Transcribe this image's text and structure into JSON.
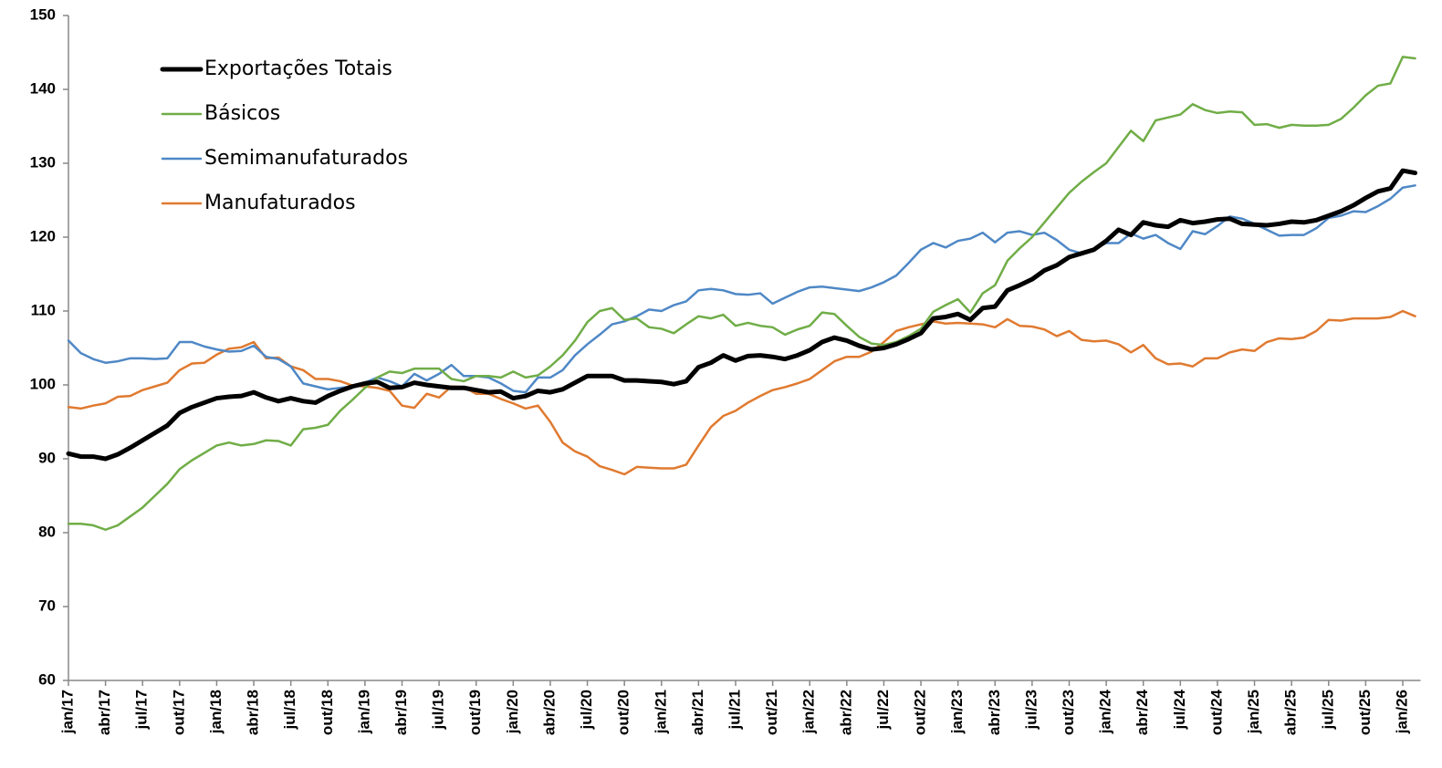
{
  "chart_data": {
    "type": "line",
    "categories": [
      "jan/17",
      null,
      null,
      "abr/17",
      null,
      null,
      "jul/17",
      null,
      null,
      "out/17",
      null,
      null,
      "jan/18",
      null,
      null,
      "abr/18",
      null,
      null,
      "jul/18",
      null,
      null,
      "out/18",
      null,
      null,
      "jan/19",
      null,
      null,
      "abr/19",
      null,
      null,
      "jul/19",
      null,
      null,
      "out/19",
      null,
      null,
      "jan/20",
      null,
      null,
      "abr/20",
      null,
      null,
      "jul/20",
      null,
      null,
      "out/20",
      null,
      null,
      "jan/21",
      null,
      null,
      "abr/21",
      null,
      null,
      "jul/21",
      null,
      null,
      "out/21",
      null,
      null,
      "jan/22",
      null,
      null,
      "abr/22",
      null,
      null,
      "jul/22",
      null,
      null,
      "out/22",
      null,
      null,
      "jan/23",
      null,
      null,
      "abr/23",
      null,
      null,
      "jul/23",
      null,
      null,
      "out/23",
      null,
      null,
      "jan/24",
      null,
      null,
      "abr/24",
      null,
      null,
      "jul/24",
      null,
      null,
      "out/24",
      null,
      null,
      "jan/25",
      null,
      null,
      "abr/25",
      null,
      null,
      "jul/25",
      null,
      null,
      "out/25",
      null,
      null,
      "jan/26",
      null
    ],
    "series": [
      {
        "name": "Exportações Totais",
        "color": "#000000",
        "width": 5,
        "values": [
          90.7,
          90.3,
          90.3,
          90.0,
          90.6,
          91.5,
          92.5,
          93.5,
          94.5,
          96.2,
          97.0,
          97.6,
          98.2,
          98.4,
          98.5,
          99.0,
          98.3,
          97.8,
          98.2,
          97.8,
          97.6,
          98.5,
          99.2,
          99.8,
          100.2,
          100.4,
          99.6,
          99.7,
          100.3,
          100.0,
          99.8,
          99.6,
          99.6,
          99.3,
          99.0,
          99.1,
          98.2,
          98.5,
          99.2,
          99.0,
          99.4,
          100.3,
          101.2,
          101.2,
          101.2,
          100.6,
          100.6,
          100.5,
          100.4,
          100.1,
          100.5,
          102.4,
          103.0,
          104.0,
          103.3,
          103.9,
          104.0,
          103.8,
          103.5,
          104.0,
          104.7,
          105.8,
          106.4,
          106.0,
          105.3,
          104.8,
          105.0,
          105.5,
          106.2,
          107.0,
          109.0,
          109.2,
          109.6,
          108.8,
          110.4,
          110.6,
          112.8,
          113.5,
          114.3,
          115.5,
          116.2,
          117.3,
          117.8,
          118.3,
          119.5,
          121.0,
          120.3,
          122.0,
          121.6,
          121.4,
          122.3,
          121.9,
          122.1,
          122.4,
          122.5,
          121.8,
          121.7,
          121.6,
          121.8,
          122.1,
          122.0,
          122.3,
          122.9,
          123.5,
          124.3,
          125.3,
          126.2,
          126.6,
          129.0,
          128.7
        ]
      },
      {
        "name": "Básicos",
        "color": "#70ad47",
        "width": 2.5,
        "values": [
          81.2,
          81.2,
          81.0,
          80.4,
          81.0,
          82.2,
          83.4,
          85.0,
          86.6,
          88.6,
          89.8,
          90.8,
          91.8,
          92.2,
          91.8,
          92.0,
          92.5,
          92.4,
          91.8,
          94.0,
          94.2,
          94.6,
          96.5,
          98.0,
          99.6,
          101.0,
          101.8,
          101.6,
          102.2,
          102.2,
          102.2,
          100.8,
          100.5,
          101.2,
          101.2,
          101.0,
          101.8,
          101.0,
          101.3,
          102.5,
          104.0,
          106.0,
          108.5,
          110.0,
          110.4,
          108.8,
          109.0,
          107.8,
          107.6,
          107.0,
          108.2,
          109.3,
          109.0,
          109.5,
          108.0,
          108.4,
          108.0,
          107.8,
          106.8,
          107.5,
          108.0,
          109.8,
          109.6,
          108.0,
          106.5,
          105.6,
          105.4,
          105.8,
          106.6,
          107.6,
          109.9,
          110.8,
          111.6,
          109.8,
          112.4,
          113.5,
          116.8,
          118.5,
          120.0,
          122.0,
          124.0,
          126.0,
          127.5,
          128.8,
          130.0,
          132.2,
          134.4,
          133.0,
          135.8,
          136.2,
          136.6,
          138.0,
          137.2,
          136.8,
          137.0,
          136.9,
          135.2,
          135.3,
          134.8,
          135.2,
          135.1,
          135.1,
          135.2,
          136.0,
          137.5,
          139.2,
          140.5,
          140.8,
          144.4,
          144.2
        ]
      },
      {
        "name": "Semimanufaturados",
        "color": "#4f88c6",
        "width": 2.5,
        "values": [
          106.0,
          104.3,
          103.5,
          103.0,
          103.2,
          103.6,
          103.6,
          103.5,
          103.6,
          105.8,
          105.8,
          105.2,
          104.8,
          104.5,
          104.6,
          105.3,
          103.8,
          103.5,
          102.5,
          100.2,
          99.8,
          99.4,
          99.6,
          99.8,
          100.3,
          101.0,
          100.5,
          99.8,
          101.5,
          100.6,
          101.5,
          102.7,
          101.2,
          101.2,
          101.0,
          100.2,
          99.2,
          99.0,
          101.0,
          101.0,
          102.0,
          104.0,
          105.5,
          106.8,
          108.2,
          108.6,
          109.3,
          110.2,
          110.0,
          110.8,
          111.3,
          112.8,
          113.0,
          112.8,
          112.3,
          112.2,
          112.4,
          111.0,
          111.8,
          112.6,
          113.2,
          113.3,
          113.1,
          112.9,
          112.7,
          113.2,
          113.9,
          114.8,
          116.5,
          118.3,
          119.2,
          118.6,
          119.5,
          119.8,
          120.6,
          119.3,
          120.6,
          120.8,
          120.3,
          120.6,
          119.6,
          118.3,
          117.8,
          118.4,
          119.2,
          119.2,
          120.5,
          119.8,
          120.3,
          119.2,
          118.4,
          120.8,
          120.4,
          121.5,
          122.8,
          122.5,
          121.8,
          121.0,
          120.2,
          120.3,
          120.3,
          121.2,
          122.6,
          122.9,
          123.5,
          123.4,
          124.2,
          125.2,
          126.7,
          127.0
        ]
      },
      {
        "name": "Manufaturados",
        "color": "#e07a30",
        "width": 2.5,
        "values": [
          97.0,
          96.8,
          97.2,
          97.5,
          98.4,
          98.5,
          99.3,
          99.8,
          100.3,
          102.0,
          102.9,
          103.0,
          104.1,
          104.9,
          105.1,
          105.8,
          103.6,
          103.7,
          102.5,
          102.0,
          100.8,
          100.8,
          100.5,
          99.9,
          99.8,
          99.6,
          99.2,
          97.2,
          96.9,
          98.8,
          98.3,
          99.8,
          99.7,
          98.8,
          98.8,
          98.1,
          97.5,
          96.8,
          97.2,
          95.0,
          92.2,
          91.0,
          90.3,
          89.0,
          88.5,
          87.9,
          88.9,
          88.8,
          88.7,
          88.7,
          89.2,
          91.8,
          94.3,
          95.8,
          96.5,
          97.6,
          98.5,
          99.3,
          99.7,
          100.2,
          100.8,
          102.0,
          103.2,
          103.8,
          103.8,
          104.5,
          105.8,
          107.3,
          107.8,
          108.2,
          108.6,
          108.3,
          108.4,
          108.3,
          108.2,
          107.8,
          108.9,
          108.0,
          107.9,
          107.5,
          106.6,
          107.3,
          106.1,
          105.9,
          106.0,
          105.5,
          104.4,
          105.4,
          103.6,
          102.8,
          102.9,
          102.5,
          103.6,
          103.6,
          104.4,
          104.8,
          104.6,
          105.8,
          106.3,
          106.2,
          106.4,
          107.3,
          108.8,
          108.7,
          109.0,
          109.0,
          109.0,
          109.2,
          110.0,
          109.3
        ]
      }
    ],
    "ylim": [
      60,
      150
    ],
    "yticks": [
      60,
      70,
      80,
      90,
      100,
      110,
      120,
      130,
      140,
      150
    ],
    "grid": false,
    "legend": "upper left"
  }
}
